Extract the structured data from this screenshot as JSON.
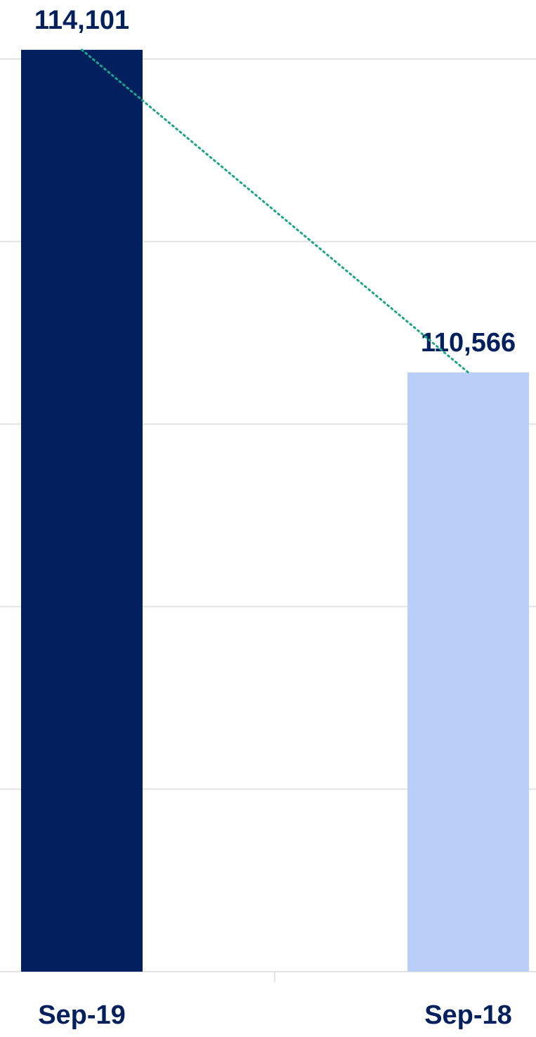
{
  "chart_data": {
    "type": "bar",
    "categories": [
      "Sep-19",
      "Sep-18"
    ],
    "values": [
      114101,
      110566
    ],
    "value_labels": [
      "114,101",
      "110,566"
    ],
    "colors": [
      "#03205e",
      "#b9cff7"
    ],
    "trend_color": "#1aa58a",
    "ylim": [
      104000,
      114000
    ],
    "yticks": [
      104000,
      106000,
      108000,
      110000,
      112000,
      114000
    ],
    "grid": true
  }
}
